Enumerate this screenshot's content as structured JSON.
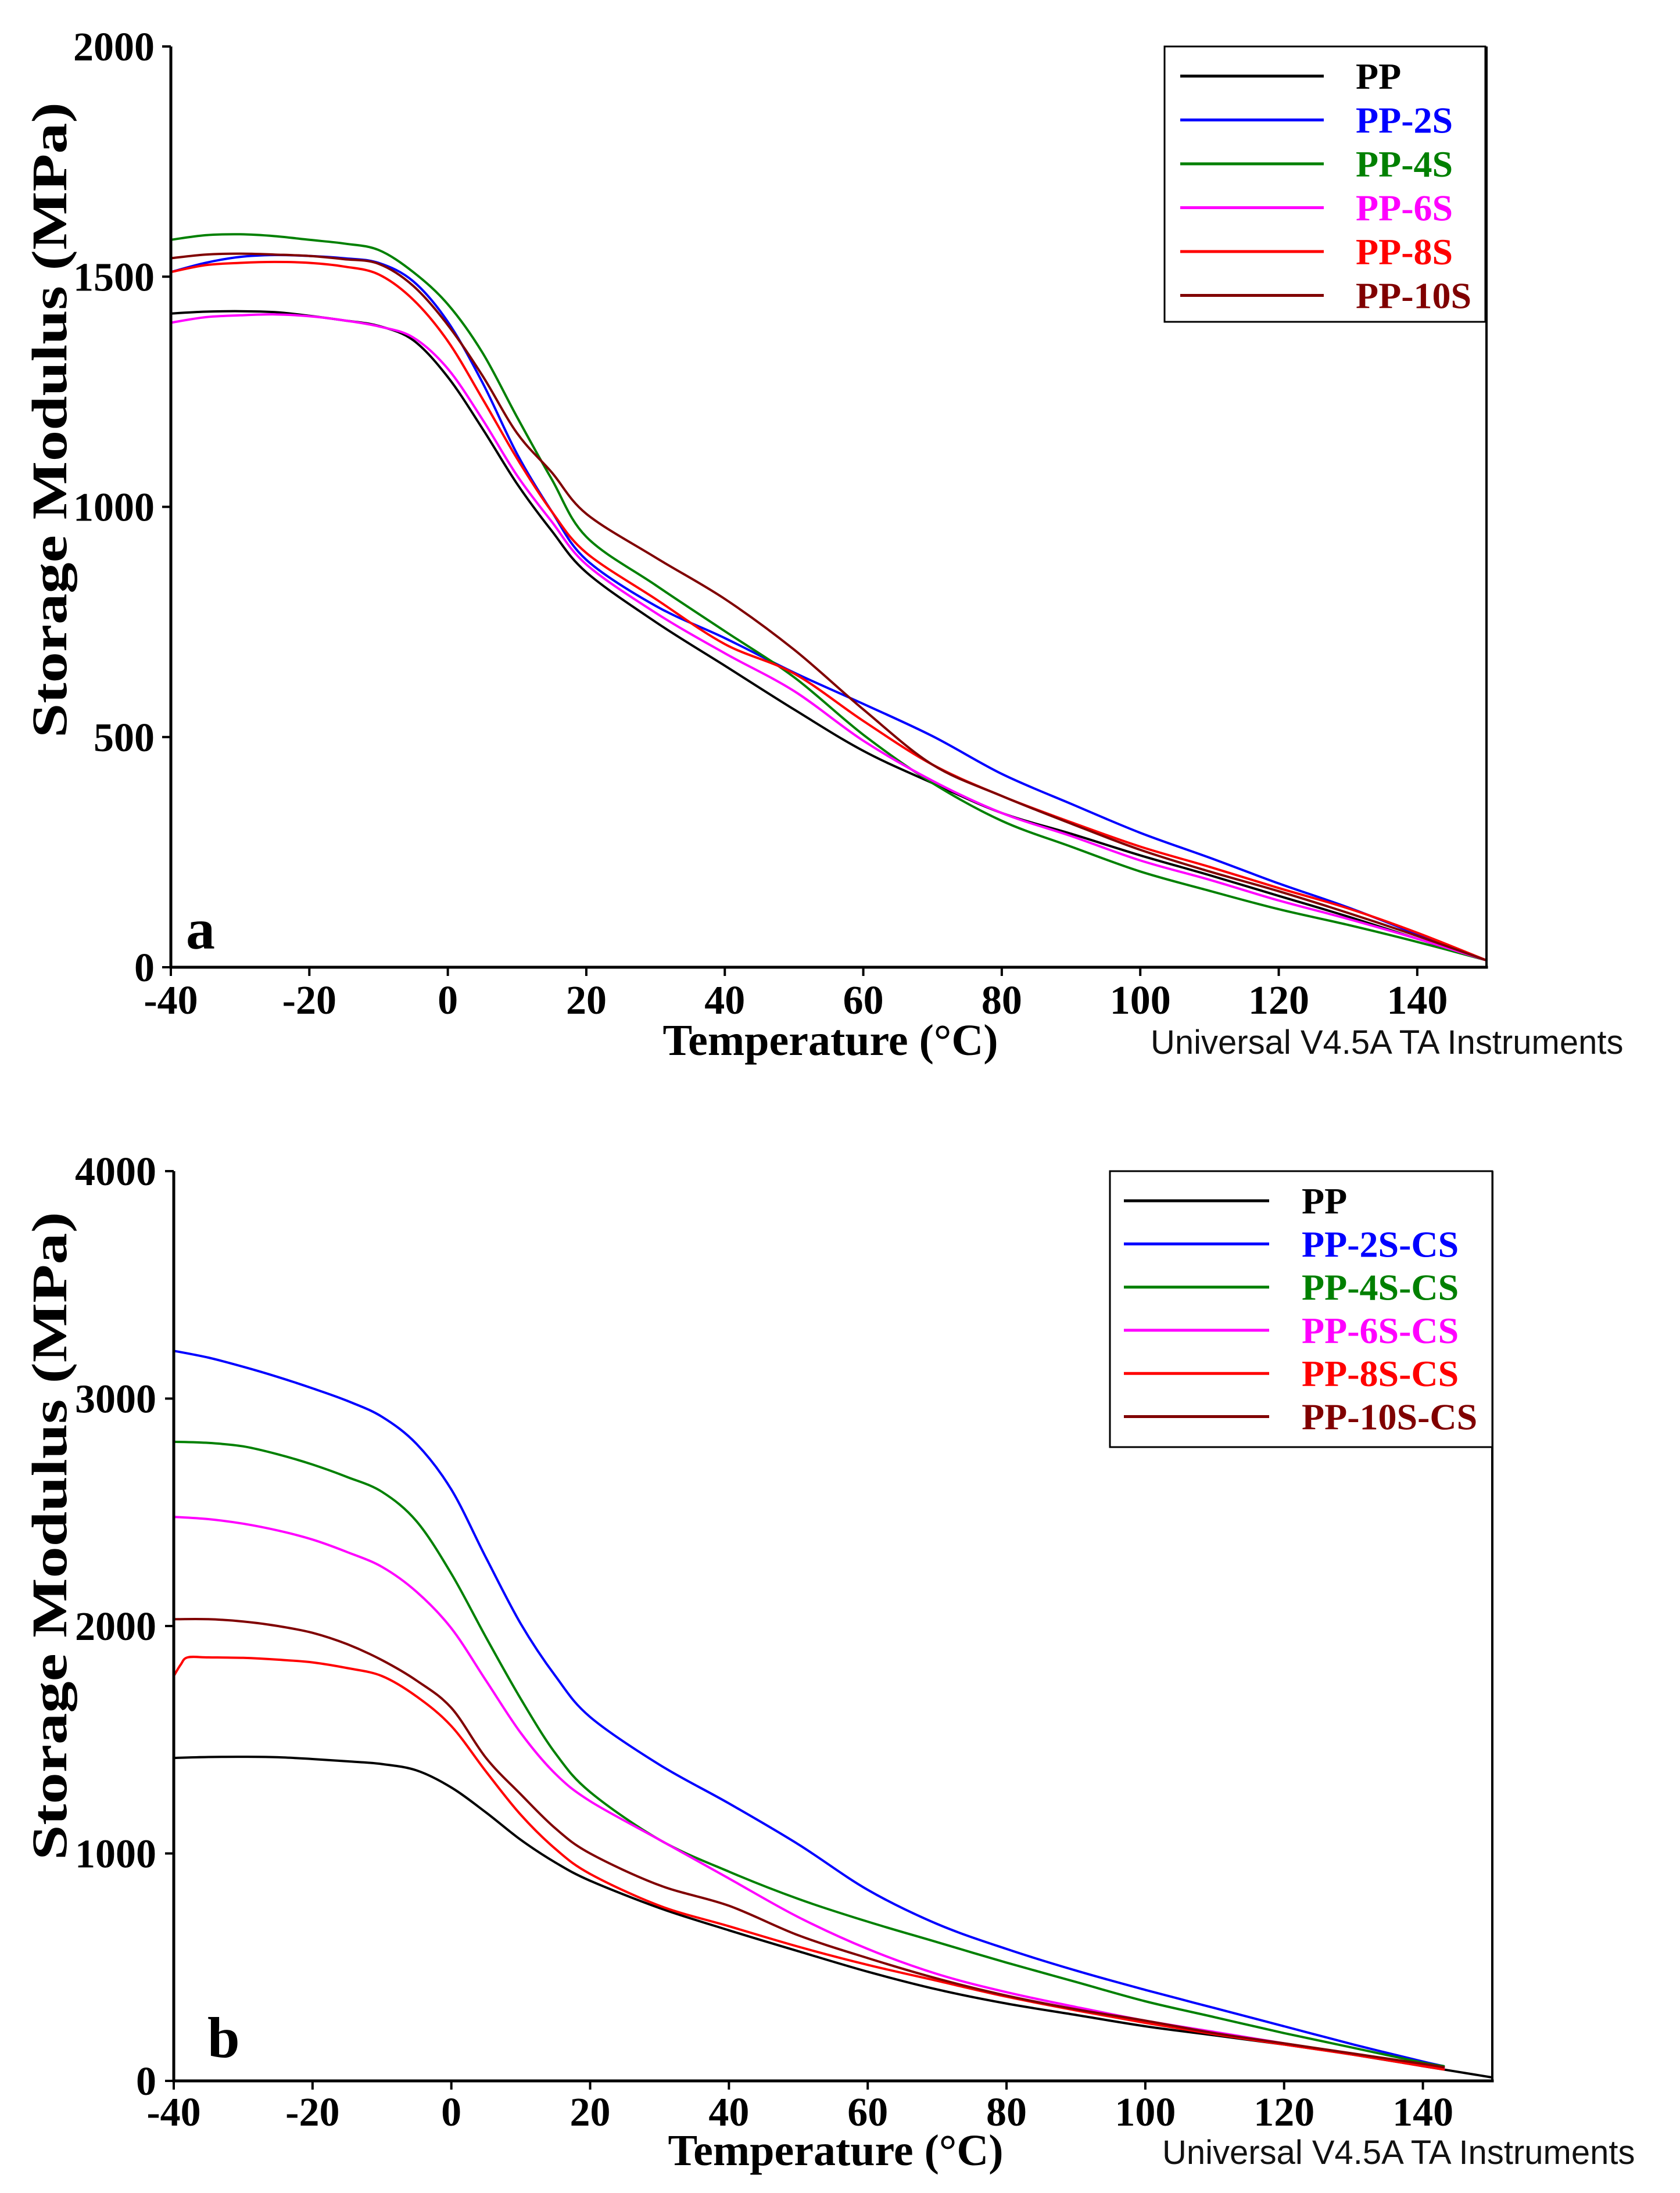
{
  "chart_data": [
    {
      "panel_label": "a",
      "type": "line",
      "xlabel": "Temperature (°C)",
      "ylabel": "Storage Modulus (MPa)",
      "xlim": [
        -40,
        150
      ],
      "ylim": [
        0,
        2000
      ],
      "xticks": [
        -40,
        -20,
        0,
        20,
        40,
        60,
        80,
        100,
        120,
        140
      ],
      "yticks": [
        0,
        500,
        1000,
        1500,
        2000
      ],
      "grid": false,
      "legend_position": "top-right",
      "footer": "Universal V4.5A TA Instruments",
      "x": [
        -40,
        -35,
        -30,
        -25,
        -20,
        -15,
        -10,
        -5,
        0,
        5,
        10,
        15,
        20,
        30,
        40,
        50,
        60,
        70,
        80,
        90,
        100,
        110,
        120,
        130,
        140,
        150
      ],
      "series": [
        {
          "name": "PP",
          "color": "#000000",
          "values": [
            1420,
            1424,
            1425,
            1423,
            1415,
            1405,
            1393,
            1362,
            1282,
            1170,
            1050,
            948,
            858,
            750,
            655,
            560,
            470,
            400,
            335,
            290,
            243,
            200,
            155,
            110,
            62,
            15
          ]
        },
        {
          "name": "PP-2S",
          "color": "#0000ff",
          "values": [
            1510,
            1530,
            1543,
            1547,
            1545,
            1540,
            1530,
            1490,
            1402,
            1270,
            1115,
            990,
            885,
            785,
            715,
            640,
            572,
            502,
            420,
            355,
            292,
            238,
            182,
            130,
            72,
            15
          ]
        },
        {
          "name": "PP-4S",
          "color": "#008000",
          "values": [
            1580,
            1590,
            1592,
            1588,
            1580,
            1572,
            1558,
            1510,
            1440,
            1335,
            1195,
            1060,
            935,
            830,
            730,
            630,
            505,
            400,
            318,
            262,
            208,
            166,
            126,
            92,
            55,
            15
          ]
        },
        {
          "name": "PP-6S",
          "color": "#ff00ff",
          "values": [
            1400,
            1412,
            1416,
            1418,
            1414,
            1405,
            1392,
            1368,
            1300,
            1190,
            1068,
            968,
            875,
            770,
            682,
            600,
            492,
            405,
            335,
            285,
            232,
            190,
            145,
            105,
            62,
            15
          ]
        },
        {
          "name": "PP-8S",
          "color": "#ff0000",
          "values": [
            1510,
            1525,
            1530,
            1532,
            1530,
            1522,
            1505,
            1450,
            1360,
            1235,
            1105,
            990,
            900,
            800,
            702,
            638,
            535,
            440,
            372,
            315,
            262,
            218,
            172,
            128,
            75,
            15
          ]
        },
        {
          "name": "PP-10S",
          "color": "#800000",
          "values": [
            1540,
            1548,
            1550,
            1548,
            1545,
            1538,
            1528,
            1480,
            1395,
            1285,
            1160,
            1075,
            985,
            890,
            800,
            690,
            560,
            440,
            372,
            312,
            255,
            208,
            165,
            118,
            68,
            15
          ]
        }
      ]
    },
    {
      "panel_label": "b",
      "type": "line",
      "xlabel": "Temperature (°C)",
      "ylabel": "Storage Modulus (MPa)",
      "xlim": [
        -40,
        150
      ],
      "ylim": [
        0,
        4000
      ],
      "xticks": [
        -40,
        -20,
        0,
        20,
        40,
        60,
        80,
        100,
        120,
        140
      ],
      "yticks": [
        0,
        1000,
        2000,
        3000,
        4000
      ],
      "grid": false,
      "legend_position": "top-right",
      "footer": "Universal V4.5A TA Instruments",
      "x": [
        -40,
        -35,
        -30,
        -25,
        -20,
        -15,
        -10,
        -5,
        0,
        5,
        10,
        15,
        20,
        30,
        40,
        50,
        60,
        70,
        80,
        90,
        100,
        110,
        120,
        130,
        140,
        143
      ],
      "series": [
        {
          "name": "PP",
          "color": "#000000",
          "x": [
            -40,
            -35,
            -30,
            -25,
            -20,
            -15,
            -10,
            -5,
            0,
            5,
            10,
            15,
            20,
            30,
            40,
            50,
            60,
            70,
            80,
            90,
            100,
            110,
            120,
            130,
            140,
            150
          ],
          "values": [
            1420,
            1424,
            1425,
            1423,
            1415,
            1405,
            1393,
            1365,
            1290,
            1180,
            1060,
            960,
            880,
            760,
            662,
            570,
            480,
            402,
            340,
            290,
            240,
            200,
            160,
            115,
            65,
            15
          ]
        },
        {
          "name": "PP-2S-CS",
          "color": "#0000ff",
          "values": [
            3210,
            3180,
            3140,
            3095,
            3045,
            2990,
            2920,
            2800,
            2600,
            2300,
            2010,
            1780,
            1600,
            1390,
            1220,
            1040,
            840,
            690,
            580,
            485,
            400,
            320,
            240,
            160,
            85,
            65
          ]
        },
        {
          "name": "PP-4S-CS",
          "color": "#008000",
          "values": [
            2810,
            2805,
            2790,
            2755,
            2710,
            2655,
            2590,
            2460,
            2230,
            1950,
            1680,
            1440,
            1270,
            1060,
            920,
            800,
            700,
            610,
            520,
            435,
            350,
            280,
            210,
            145,
            80,
            65
          ]
        },
        {
          "name": "PP-6S-CS",
          "color": "#ff00ff",
          "values": [
            2480,
            2470,
            2450,
            2420,
            2380,
            2325,
            2260,
            2150,
            1990,
            1760,
            1530,
            1350,
            1230,
            1060,
            890,
            720,
            580,
            470,
            390,
            325,
            265,
            215,
            165,
            118,
            70,
            55
          ]
        },
        {
          "name": "PP-8S-CS",
          "color": "#ff0000",
          "x": [
            -40,
            -39,
            -38,
            -35,
            -30,
            -25,
            -20,
            -15,
            -10,
            -5,
            0,
            5,
            10,
            15,
            20,
            30,
            40,
            50,
            60,
            70,
            80,
            90,
            100,
            110,
            120,
            130,
            140,
            143
          ],
          "values": [
            1780,
            1830,
            1862,
            1862,
            1860,
            1852,
            1840,
            1815,
            1780,
            1690,
            1560,
            1360,
            1170,
            1020,
            910,
            770,
            680,
            590,
            510,
            440,
            370,
            310,
            255,
            205,
            160,
            115,
            65,
            50
          ]
        },
        {
          "name": "PP-10S-CS",
          "color": "#800000",
          "values": [
            2030,
            2030,
            2020,
            2000,
            1970,
            1920,
            1850,
            1760,
            1640,
            1420,
            1260,
            1110,
            1000,
            860,
            770,
            640,
            540,
            450,
            375,
            315,
            265,
            210,
            165,
            120,
            75,
            60
          ]
        }
      ]
    }
  ]
}
